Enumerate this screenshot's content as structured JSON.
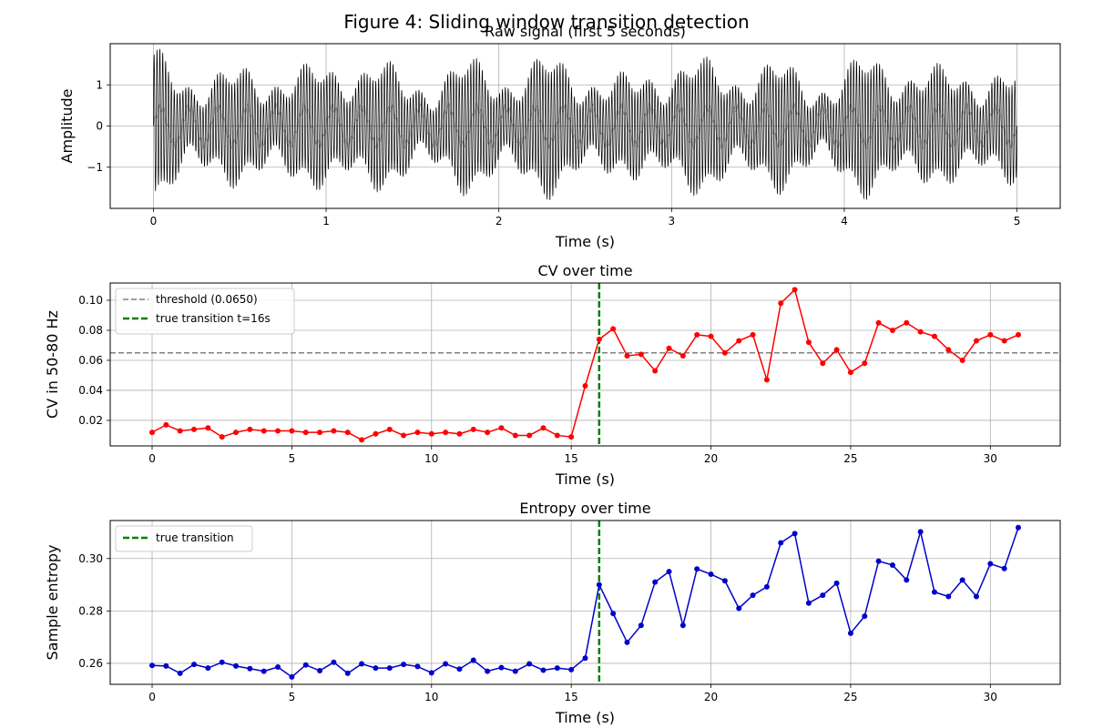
{
  "figure_title": "Figure 4: Sliding window transition detection",
  "colors": {
    "signal": "#000000",
    "cv": "#ff0000",
    "entropy": "#0000cc",
    "threshold": "#808080",
    "transition": "#008000",
    "grid": "#b0b0b0"
  },
  "chart_data": [
    {
      "type": "line",
      "title": "Raw signal (first 5 seconds)",
      "xlabel": "Time (s)",
      "ylabel": "Amplitude",
      "xlim": [
        -0.25,
        5.25
      ],
      "ylim": [
        -2.0,
        2.0
      ],
      "xticks": [
        0,
        1,
        2,
        3,
        4,
        5
      ],
      "yticks": [
        -1,
        0,
        1
      ],
      "ytick_labels": [
        "−1",
        "0",
        "1"
      ],
      "grid": true,
      "signal": {
        "duration_s": 5,
        "envelope_peak": 1.7,
        "carrier_hz": 60,
        "modulation_hz": 6
      }
    },
    {
      "type": "line",
      "title": "CV over time",
      "xlabel": "Time (s)",
      "ylabel": "CV in 50-80 Hz",
      "xlim": [
        -1.5,
        32.5
      ],
      "ylim": [
        0.003,
        0.1115
      ],
      "xticks": [
        0,
        5,
        10,
        15,
        20,
        25,
        30
      ],
      "yticks": [
        0.02,
        0.04,
        0.06,
        0.08,
        0.1
      ],
      "ytick_labels": [
        "0.02",
        "0.04",
        "0.06",
        "0.08",
        "0.10"
      ],
      "grid": true,
      "legend_position": "upper-left",
      "threshold": {
        "name": "threshold (0.0650)",
        "value": 0.065
      },
      "transition": {
        "name": "true transition t=16s",
        "x": 16
      },
      "x": [
        0,
        0.5,
        1,
        1.5,
        2,
        2.5,
        3,
        3.5,
        4,
        4.5,
        5,
        5.5,
        6,
        6.5,
        7,
        7.5,
        8,
        8.5,
        9,
        9.5,
        10,
        10.5,
        11,
        11.5,
        12,
        12.5,
        13,
        13.5,
        14,
        14.5,
        15,
        15.5,
        16,
        16.5,
        17,
        17.5,
        18,
        18.5,
        19,
        19.5,
        20,
        20.5,
        21,
        21.5,
        22,
        22.5,
        23,
        23.5,
        24,
        24.5,
        25,
        25.5,
        26,
        26.5,
        27,
        27.5,
        28,
        28.5,
        29,
        29.5,
        30,
        30.5,
        31
      ],
      "values": [
        0.012,
        0.017,
        0.013,
        0.014,
        0.015,
        0.009,
        0.012,
        0.014,
        0.013,
        0.013,
        0.013,
        0.012,
        0.012,
        0.013,
        0.012,
        0.007,
        0.011,
        0.014,
        0.01,
        0.012,
        0.011,
        0.012,
        0.011,
        0.014,
        0.012,
        0.015,
        0.01,
        0.01,
        0.015,
        0.01,
        0.009,
        0.043,
        0.074,
        0.081,
        0.063,
        0.064,
        0.053,
        0.068,
        0.063,
        0.077,
        0.076,
        0.065,
        0.073,
        0.077,
        0.047,
        0.098,
        0.107,
        0.072,
        0.058,
        0.067,
        0.052,
        0.058,
        0.085,
        0.08,
        0.085,
        0.079,
        0.076,
        0.067,
        0.06,
        0.073,
        0.077,
        0.073,
        0.077
      ]
    },
    {
      "type": "line",
      "title": "Entropy over time",
      "xlabel": "Time (s)",
      "ylabel": "Sample entropy",
      "xlim": [
        -1.5,
        32.5
      ],
      "ylim": [
        0.252,
        0.3145
      ],
      "xticks": [
        0,
        5,
        10,
        15,
        20,
        25,
        30
      ],
      "yticks": [
        0.26,
        0.28,
        0.3
      ],
      "ytick_labels": [
        "0.26",
        "0.28",
        "0.30"
      ],
      "grid": true,
      "legend_position": "upper-left",
      "transition": {
        "name": "true transition",
        "x": 16
      },
      "x": [
        0,
        0.5,
        1,
        1.5,
        2,
        2.5,
        3,
        3.5,
        4,
        4.5,
        5,
        5.5,
        6,
        6.5,
        7,
        7.5,
        8,
        8.5,
        9,
        9.5,
        10,
        10.5,
        11,
        11.5,
        12,
        12.5,
        13,
        13.5,
        14,
        14.5,
        15,
        15.5,
        16,
        16.5,
        17,
        17.5,
        18,
        18.5,
        19,
        19.5,
        20,
        20.5,
        21,
        21.5,
        22,
        22.5,
        23,
        23.5,
        24,
        24.5,
        25,
        25.5,
        26,
        26.5,
        27,
        27.5,
        28,
        28.5,
        29,
        29.5,
        30,
        30.5,
        31
      ],
      "values": [
        0.2592,
        0.259,
        0.2562,
        0.2596,
        0.2582,
        0.2604,
        0.259,
        0.258,
        0.257,
        0.2586,
        0.2548,
        0.2594,
        0.2572,
        0.2604,
        0.2562,
        0.2598,
        0.2582,
        0.2582,
        0.2596,
        0.2588,
        0.2564,
        0.2598,
        0.2578,
        0.2612,
        0.257,
        0.2584,
        0.257,
        0.2598,
        0.2574,
        0.2582,
        0.2576,
        0.262,
        0.29,
        0.279,
        0.268,
        0.2745,
        0.291,
        0.295,
        0.2745,
        0.296,
        0.294,
        0.2915,
        0.281,
        0.286,
        0.2892,
        0.306,
        0.3095,
        0.283,
        0.286,
        0.2906,
        0.2715,
        0.278,
        0.299,
        0.2975,
        0.2918,
        0.3102,
        0.2872,
        0.2855,
        0.2918,
        0.2855,
        0.298,
        0.2962,
        0.3118
      ]
    }
  ]
}
